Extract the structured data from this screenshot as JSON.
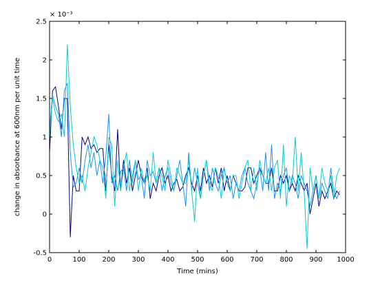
{
  "chart_data": {
    "type": "line",
    "title": "",
    "xlabel": "Time (mins)",
    "ylabel": "change in absorbance at 600nm per unit time",
    "y_multiplier": "× 10⁻³",
    "xlim": [
      0,
      1000
    ],
    "ylim": [
      -0.5,
      2.5
    ],
    "x_ticks": [
      0,
      100,
      200,
      300,
      400,
      500,
      600,
      700,
      800,
      900,
      1000
    ],
    "y_ticks": [
      -0.5,
      0,
      0.5,
      1,
      1.5,
      2,
      2.5
    ],
    "x_tick_labels": [
      "0",
      "100",
      "200",
      "300",
      "400",
      "500",
      "600",
      "700",
      "800",
      "900",
      "1000"
    ],
    "y_tick_labels": [
      "-0.5",
      "0",
      "0.5",
      "1",
      "1.5",
      "2",
      "2.5"
    ],
    "grid": false,
    "legend": "none",
    "colors": [
      "#00008b",
      "#1e90ff",
      "#00ced1"
    ],
    "series": [
      {
        "color": "#00008b",
        "x": [
          0,
          10,
          20,
          30,
          40,
          50,
          60,
          70,
          80,
          90,
          100,
          110,
          120,
          130,
          140,
          150,
          160,
          170,
          180,
          190,
          200,
          210,
          220,
          230,
          240,
          250,
          260,
          270,
          280,
          290,
          300,
          310,
          320,
          330,
          340,
          350,
          360,
          370,
          380,
          390,
          400,
          410,
          420,
          430,
          440,
          450,
          460,
          470,
          480,
          490,
          500,
          510,
          520,
          530,
          540,
          550,
          560,
          570,
          580,
          590,
          600,
          610,
          620,
          630,
          640,
          650,
          660,
          670,
          680,
          690,
          700,
          710,
          720,
          730,
          740,
          750,
          760,
          770,
          780,
          790,
          800,
          810,
          820,
          830,
          840,
          850,
          860,
          870,
          880,
          890,
          900,
          910,
          920,
          930,
          940,
          950,
          960,
          970,
          980
        ],
        "values": [
          0.8,
          1.6,
          1.65,
          1.4,
          1.1,
          1.5,
          1.5,
          -0.3,
          0.5,
          0.3,
          0.3,
          1.0,
          0.9,
          1.0,
          0.85,
          0.9,
          0.8,
          0.85,
          0.85,
          0.3,
          0.9,
          0.5,
          0.3,
          1.1,
          0.3,
          0.7,
          0.4,
          0.6,
          0.3,
          0.5,
          0.7,
          0.5,
          0.4,
          0.6,
          0.2,
          0.4,
          0.3,
          0.5,
          0.6,
          0.4,
          0.5,
          0.3,
          0.4,
          0.45,
          0.3,
          0.35,
          0.5,
          0.6,
          0.4,
          0.3,
          0.5,
          0.3,
          0.6,
          0.4,
          0.5,
          0.35,
          0.6,
          0.4,
          0.6,
          0.3,
          0.5,
          0.3,
          0.5,
          0.4,
          0.3,
          0.3,
          0.35,
          0.6,
          0.6,
          0.4,
          0.5,
          0.6,
          0.5,
          0.4,
          0.4,
          0.6,
          0.3,
          0.3,
          0.5,
          0.4,
          0.5,
          0.3,
          0.4,
          0.3,
          0.5,
          0.4,
          0.3,
          0.4,
          0.0,
          0.2,
          0.4,
          0.1,
          0.3,
          0.2,
          0.3,
          0.4,
          0.2,
          0.3,
          0.25
        ]
      },
      {
        "color": "#1e90ff",
        "x": [
          0,
          10,
          20,
          30,
          40,
          50,
          60,
          70,
          80,
          90,
          100,
          110,
          120,
          130,
          140,
          150,
          160,
          170,
          180,
          190,
          200,
          210,
          220,
          230,
          240,
          250,
          260,
          270,
          280,
          290,
          300,
          310,
          320,
          330,
          340,
          350,
          360,
          370,
          380,
          390,
          400,
          410,
          420,
          430,
          440,
          450,
          460,
          470,
          480,
          490,
          500,
          510,
          520,
          530,
          540,
          550,
          560,
          570,
          580,
          590,
          600,
          610,
          620,
          630,
          640,
          650,
          660,
          670,
          680,
          690,
          700,
          710,
          720,
          730,
          740,
          750,
          760,
          770,
          780,
          790,
          800,
          810,
          820,
          830,
          840,
          850,
          860,
          870,
          880,
          890,
          900,
          910,
          920,
          930,
          940,
          950,
          960,
          970,
          980
        ],
        "values": [
          1.1,
          1.55,
          1.4,
          1.3,
          1.0,
          1.6,
          1.7,
          0.8,
          0.35,
          0.4,
          0.6,
          0.4,
          0.7,
          0.9,
          0.6,
          0.8,
          0.5,
          0.7,
          0.4,
          0.75,
          1.3,
          0.4,
          0.5,
          0.3,
          0.55,
          0.6,
          0.3,
          0.7,
          0.4,
          0.7,
          0.45,
          0.5,
          0.2,
          0.7,
          0.5,
          0.55,
          0.4,
          0.6,
          0.3,
          0.5,
          0.6,
          0.4,
          0.3,
          0.5,
          0.7,
          0.4,
          0.1,
          0.8,
          0.3,
          0.6,
          0.4,
          0.2,
          0.5,
          0.7,
          0.3,
          0.6,
          0.4,
          0.3,
          0.5,
          0.6,
          0.4,
          0.5,
          0.2,
          0.4,
          0.3,
          0.5,
          0.6,
          0.4,
          0.3,
          0.2,
          0.4,
          0.6,
          0.3,
          0.8,
          0.3,
          0.9,
          0.2,
          0.4,
          0.3,
          0.5,
          0.6,
          0.3,
          0.5,
          0.4,
          0.2,
          0.5,
          0.4,
          0.3,
          0.1,
          0.3,
          0.5,
          0.2,
          0.4,
          0.3,
          0.2,
          0.6,
          0.3,
          0.2,
          0.3
        ]
      },
      {
        "color": "#00ced1",
        "x": [
          0,
          10,
          20,
          30,
          40,
          50,
          60,
          70,
          80,
          90,
          100,
          110,
          120,
          130,
          140,
          150,
          160,
          170,
          180,
          190,
          200,
          210,
          220,
          230,
          240,
          250,
          260,
          270,
          280,
          290,
          300,
          310,
          320,
          330,
          340,
          350,
          360,
          370,
          380,
          390,
          400,
          410,
          420,
          430,
          440,
          450,
          460,
          470,
          480,
          490,
          500,
          510,
          520,
          530,
          540,
          550,
          560,
          570,
          580,
          590,
          600,
          610,
          620,
          630,
          640,
          650,
          660,
          670,
          680,
          690,
          700,
          710,
          720,
          730,
          740,
          750,
          760,
          770,
          780,
          790,
          800,
          810,
          820,
          830,
          840,
          850,
          860,
          870,
          880,
          890,
          900,
          910,
          920,
          930,
          940,
          950,
          960,
          970,
          980
        ],
        "values": [
          1.0,
          1.5,
          1.3,
          1.2,
          1.3,
          1.0,
          2.2,
          1.4,
          0.9,
          0.6,
          0.4,
          0.5,
          0.3,
          0.6,
          0.8,
          1.0,
          0.9,
          0.7,
          0.6,
          0.2,
          1.0,
          0.9,
          0.1,
          0.7,
          0.3,
          0.6,
          0.8,
          0.3,
          0.5,
          0.7,
          0.3,
          0.6,
          0.4,
          0.5,
          0.3,
          0.8,
          0.4,
          0.6,
          0.5,
          0.3,
          0.7,
          0.5,
          0.3,
          0.6,
          0.5,
          0.4,
          0.4,
          0.7,
          0.3,
          -0.1,
          0.6,
          0.2,
          0.5,
          0.7,
          0.4,
          0.3,
          0.6,
          0.5,
          0.2,
          0.6,
          0.4,
          0.3,
          0.5,
          0.5,
          0.2,
          0.4,
          0.6,
          0.7,
          0.3,
          0.6,
          0.3,
          0.7,
          0.5,
          0.4,
          0.6,
          0.3,
          0.6,
          0.7,
          0.2,
          0.9,
          0.1,
          0.5,
          0.4,
          1.0,
          0.3,
          0.8,
          0.3,
          -0.45,
          0.6,
          0.3,
          0.5,
          0.2,
          0.6,
          0.4,
          0.3,
          0.5,
          0.2,
          0.5,
          0.6
        ]
      }
    ]
  }
}
